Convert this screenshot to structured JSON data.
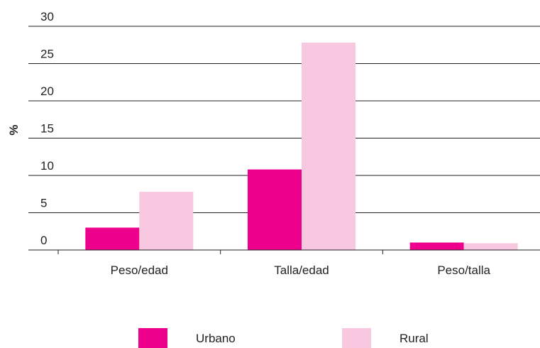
{
  "chart_data": {
    "type": "bar",
    "categories": [
      "Peso/edad",
      "Talla/edad",
      "Peso/talla"
    ],
    "series": [
      {
        "name": "Urbano",
        "color": "#EC008C",
        "values": [
          3,
          10.8,
          1
        ]
      },
      {
        "name": "Rural",
        "color": "#F7C8DF",
        "values": [
          7.8,
          27.8,
          0.9
        ]
      }
    ],
    "ylabel": "%",
    "ylim": [
      0,
      30
    ],
    "yticks": [
      0,
      5,
      10,
      15,
      20,
      25,
      30
    ],
    "grid": true,
    "legend": "bottom"
  }
}
